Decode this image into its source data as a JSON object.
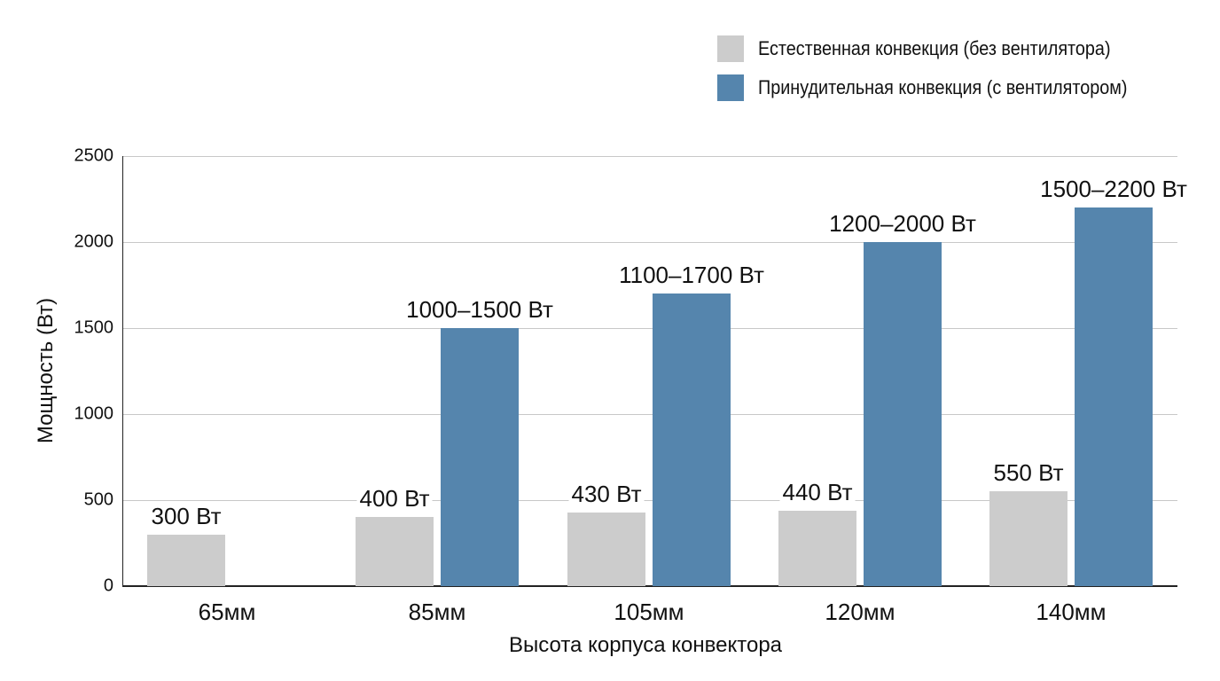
{
  "chart_data": {
    "type": "bar",
    "title": "",
    "xlabel": "Высота корпуса конвектора",
    "ylabel": "Мощность (Вт)",
    "ylim": [
      0,
      2500
    ],
    "yticks": [
      "0",
      "500",
      "1000",
      "1500",
      "2000",
      "2500"
    ],
    "grid": true,
    "legend_position": "top-right",
    "categories": [
      "65мм",
      "85мм",
      "105мм",
      "120мм",
      "140мм"
    ],
    "series": [
      {
        "name": "Естественная конвекция (без вентилятора)",
        "color": "#cccccc",
        "values": [
          300,
          400,
          430,
          440,
          550
        ],
        "labels": [
          "300 Вт",
          "400 Вт",
          "430 Вт",
          "440 Вт",
          "550 Вт"
        ]
      },
      {
        "name": "Принудительная конвекция (с вентилятором)",
        "color": "#5585ad",
        "values": [
          null,
          1500,
          1700,
          2000,
          2200
        ],
        "labels": [
          "",
          "1000–1500 Вт",
          "1100–1700 Вт",
          "1200–2000 Вт",
          "1500–2200 Вт"
        ]
      }
    ]
  },
  "legend": {
    "items": [
      {
        "label": "Естественная конвекция (без вентилятора)",
        "color": "#cccccc"
      },
      {
        "label": "Принудительная конвекция (с вентилятором)",
        "color": "#5585ad"
      }
    ]
  },
  "axes": {
    "y_label": "Мощность (Вт)",
    "x_label": "Высота корпуса конвектора"
  }
}
